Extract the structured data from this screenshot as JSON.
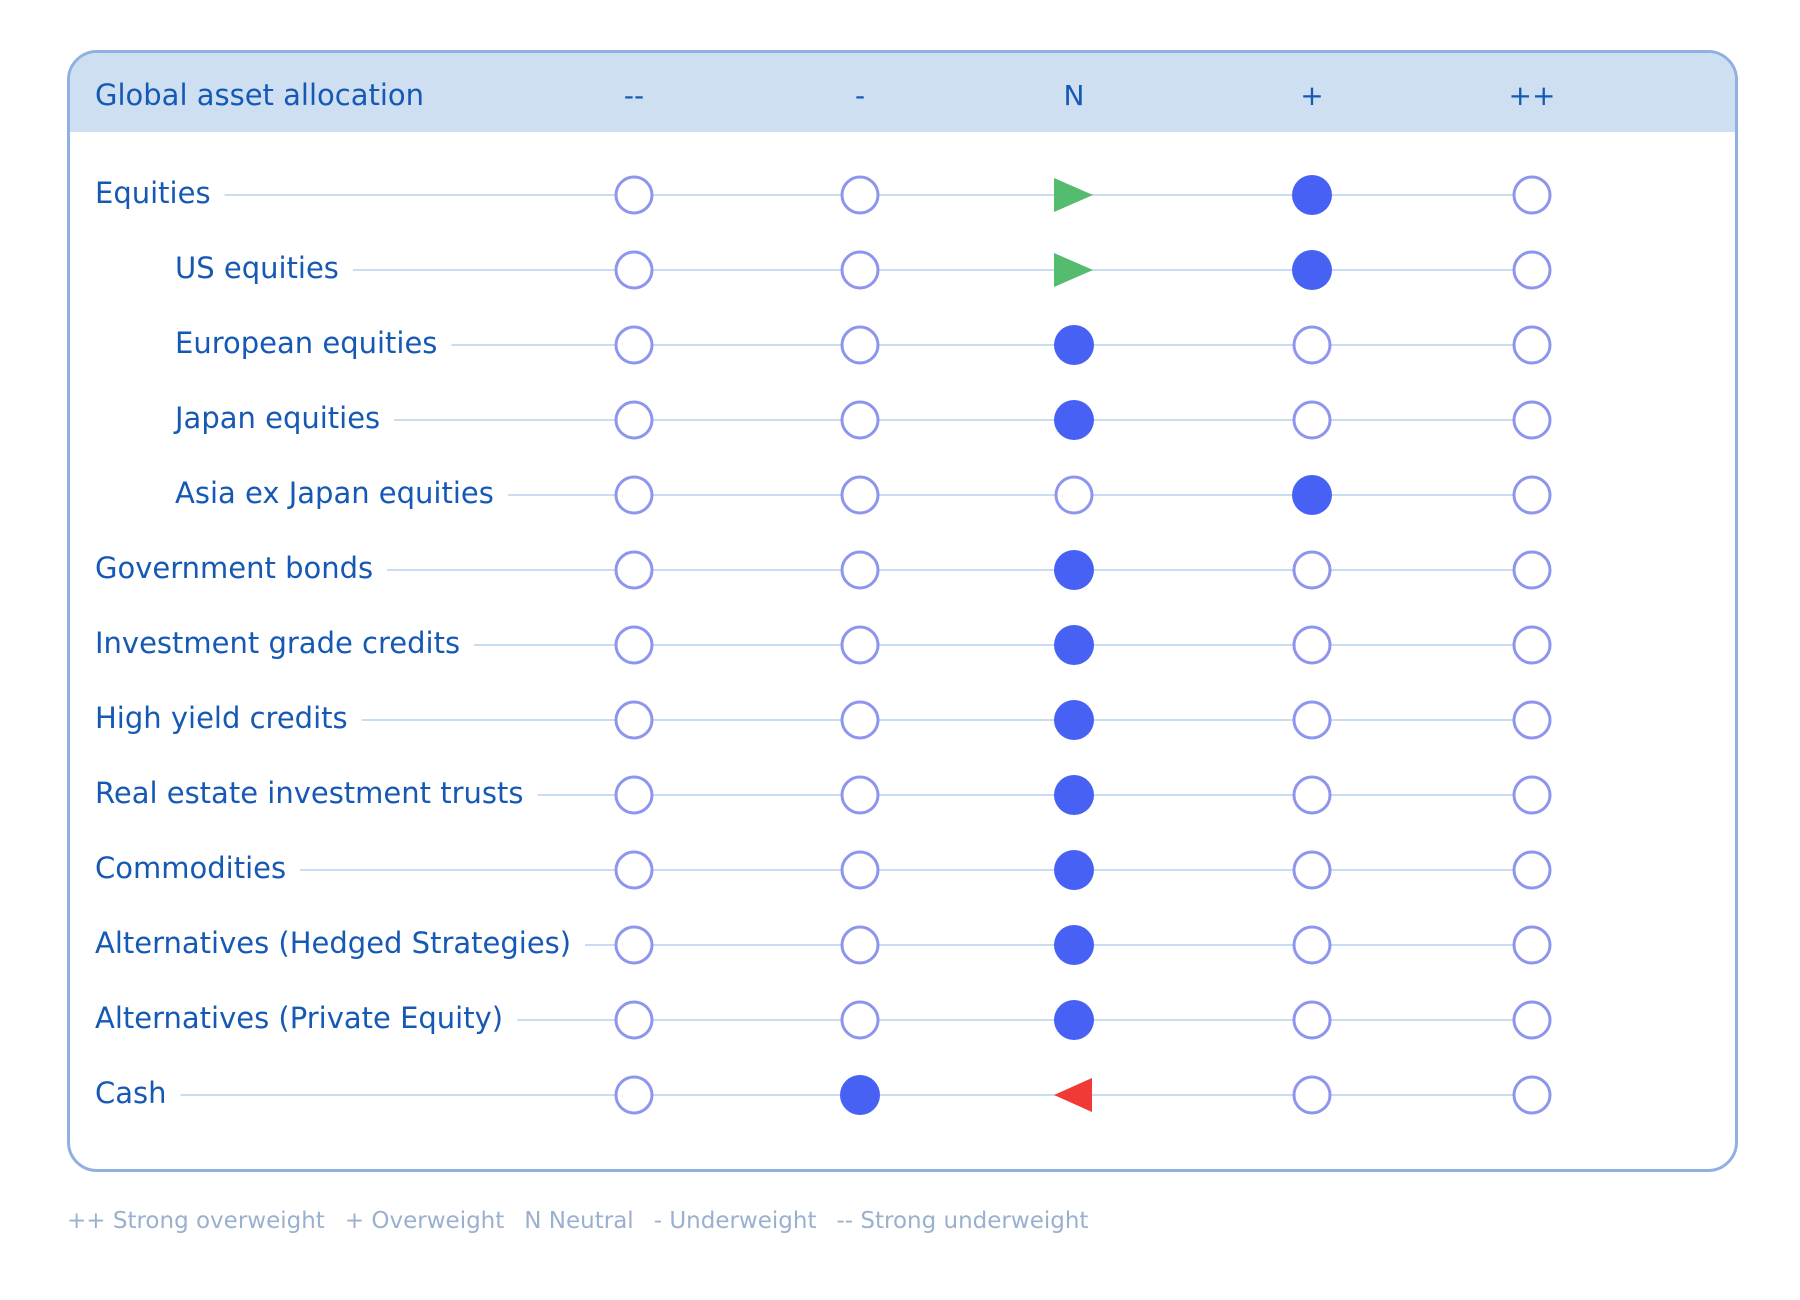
{
  "chart_data": {
    "type": "table",
    "title": "Global asset allocation",
    "scale": [
      "--",
      "-",
      "N",
      "+",
      "++"
    ],
    "rows": [
      {
        "label": "Equities",
        "level": 0,
        "position": "+",
        "change": "up"
      },
      {
        "label": "US equities",
        "level": 1,
        "position": "+",
        "change": "up"
      },
      {
        "label": "European equities",
        "level": 1,
        "position": "N",
        "change": null
      },
      {
        "label": "Japan equities",
        "level": 1,
        "position": "N",
        "change": null
      },
      {
        "label": "Asia ex Japan equities",
        "level": 1,
        "position": "+",
        "change": null
      },
      {
        "label": "Government bonds",
        "level": 0,
        "position": "N",
        "change": null
      },
      {
        "label": "Investment grade credits",
        "level": 0,
        "position": "N",
        "change": null
      },
      {
        "label": "High yield credits",
        "level": 0,
        "position": "N",
        "change": null
      },
      {
        "label": "Real estate investment trusts",
        "level": 0,
        "position": "N",
        "change": null
      },
      {
        "label": "Commodities",
        "level": 0,
        "position": "N",
        "change": null
      },
      {
        "label": "Alternatives (Hedged Strategies)",
        "level": 0,
        "position": "N",
        "change": null
      },
      {
        "label": "Alternatives (Private Equity)",
        "level": 0,
        "position": "N",
        "change": null
      },
      {
        "label": "Cash",
        "level": 0,
        "position": "-",
        "change": "down"
      }
    ],
    "legend": [
      "++ Strong overweight",
      "+ Overweight",
      "N Neutral",
      "- Underweight",
      "-- Strong underweight"
    ]
  },
  "colors": {
    "text": "#1659b5",
    "connector_line": "#c9ddf2",
    "header_band": "#cddff1",
    "border": "#8fb0e0",
    "empty_circle_stroke": "#8e95ee",
    "filled_dot": "#4661f4",
    "arrow_up": "#55bb6f",
    "arrow_down": "#f03a35",
    "legend_text": "#9ab0cf"
  },
  "icons": {
    "upgrade_marker": "right-triangle-icon",
    "downgrade_marker": "left-triangle-icon",
    "current_position_marker": "filled-dot-icon",
    "empty_position_marker": "empty-circle-icon"
  }
}
